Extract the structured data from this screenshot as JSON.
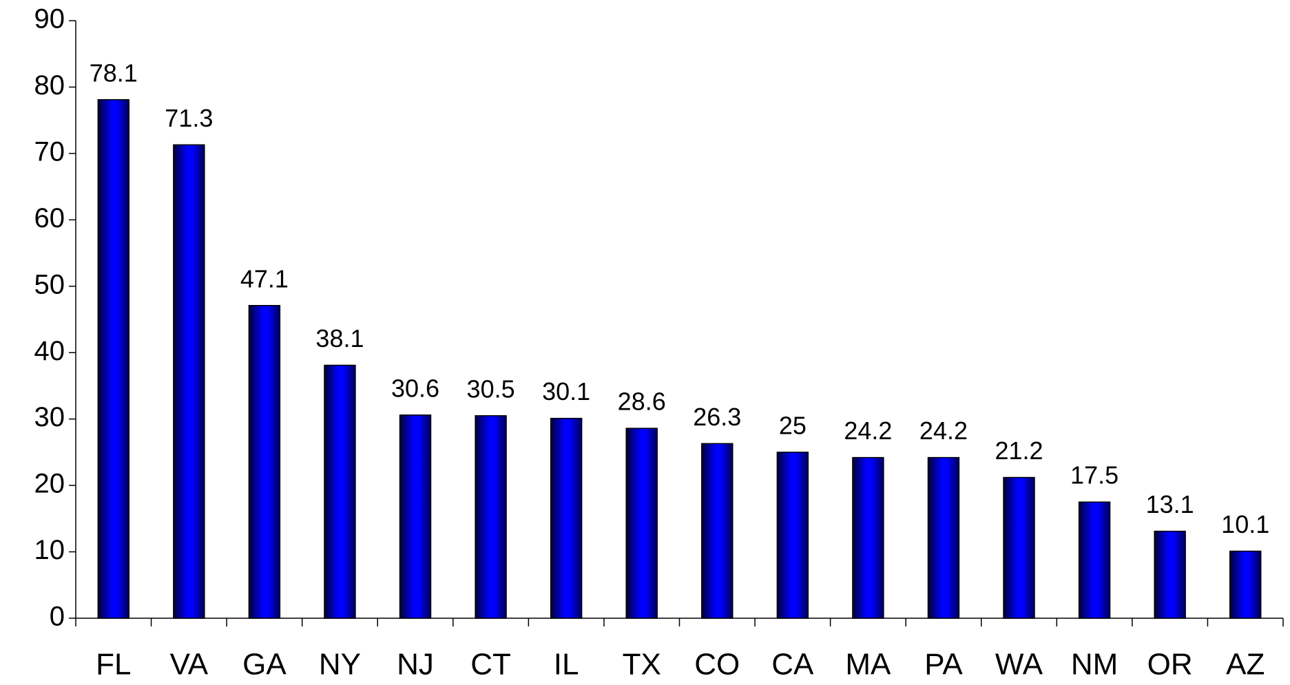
{
  "chart_data": {
    "type": "bar",
    "categories": [
      "FL",
      "VA",
      "GA",
      "NY",
      "NJ",
      "CT",
      "IL",
      "TX",
      "CO",
      "CA",
      "MA",
      "PA",
      "WA",
      "NM",
      "OR",
      "AZ"
    ],
    "values": [
      78.1,
      71.3,
      47.1,
      38.1,
      30.6,
      30.5,
      30.1,
      28.6,
      26.3,
      25,
      24.2,
      24.2,
      21.2,
      17.5,
      13.1,
      10.1
    ],
    "color": "#0000ff",
    "ylim": [
      0,
      90
    ],
    "yticks": [
      0,
      10,
      20,
      30,
      40,
      50,
      60,
      70,
      80,
      90
    ],
    "grid": false
  }
}
